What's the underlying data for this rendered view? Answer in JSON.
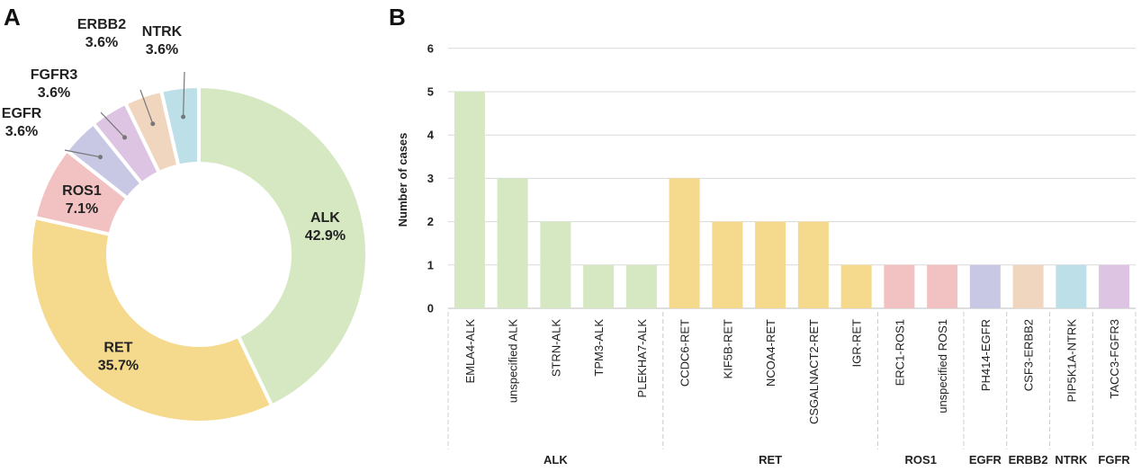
{
  "panels": {
    "a": "A",
    "b": "B"
  },
  "chart_data": [
    {
      "type": "pie",
      "donut": true,
      "slices": [
        {
          "label": "ALK",
          "percent": "42.9%",
          "value": 42.9,
          "color": "#d5e8c2"
        },
        {
          "label": "RET",
          "percent": "35.7%",
          "value": 35.7,
          "color": "#f5d98c"
        },
        {
          "label": "ROS1",
          "percent": "7.1%",
          "value": 7.1,
          "color": "#f2c2c2"
        },
        {
          "label": "EGFR",
          "percent": "3.6%",
          "value": 3.6,
          "color": "#c8c8e4"
        },
        {
          "label": "FGFR3",
          "percent": "3.6%",
          "value": 3.6,
          "color": "#dcc4e2"
        },
        {
          "label": "ERBB2",
          "percent": "3.6%",
          "value": 3.6,
          "color": "#f1d6bf"
        },
        {
          "label": "NTRK",
          "percent": "3.6%",
          "value": 3.6,
          "color": "#bde0e8"
        }
      ]
    },
    {
      "type": "bar",
      "ylabel": "Number of cases",
      "ylim": [
        0,
        6
      ],
      "yticks": [
        "0",
        "1",
        "2",
        "3",
        "4",
        "5",
        "6"
      ],
      "grid": true,
      "categories": [
        "EMLA4-ALK",
        "unspecified ALK",
        "STRN-ALK",
        "TPM3-ALK",
        "PLEKHA7-ALK",
        "CCDC6-RET",
        "KIF5B-RET",
        "NCOA4-RET",
        "CSGALNACT2-RET",
        "IGR-RET",
        "ERC1-ROS1",
        "unspecified ROS1",
        "PH414-EGFR",
        "CSF3-ERBB2",
        "PIP5K1A-NTRK",
        "TACC3-FGFR3"
      ],
      "values": [
        5,
        3,
        2,
        1,
        1,
        3,
        2,
        2,
        2,
        1,
        1,
        1,
        1,
        1,
        1,
        1
      ],
      "colors": [
        "#d5e8c2",
        "#d5e8c2",
        "#d5e8c2",
        "#d5e8c2",
        "#d5e8c2",
        "#f5d98c",
        "#f5d98c",
        "#f5d98c",
        "#f5d98c",
        "#f5d98c",
        "#f2c2c2",
        "#f2c2c2",
        "#c8c8e4",
        "#f1d6bf",
        "#bde0e8",
        "#dcc4e2"
      ],
      "groups": [
        {
          "label": "ALK",
          "count": 5
        },
        {
          "label": "RET",
          "count": 5
        },
        {
          "label": "ROS1",
          "count": 2
        },
        {
          "label": "EGFR",
          "count": 1
        },
        {
          "label": "ERBB2",
          "count": 1
        },
        {
          "label": "NTRK",
          "count": 1
        },
        {
          "label": "FGFR",
          "count": 1
        }
      ]
    }
  ]
}
